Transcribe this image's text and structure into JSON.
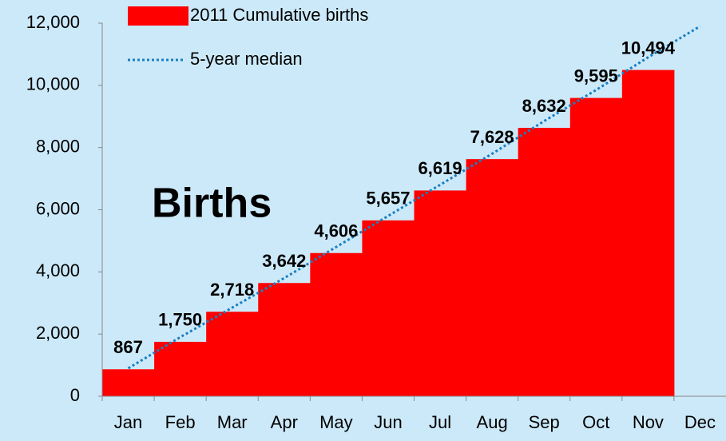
{
  "chart_data": {
    "type": "bar",
    "annotation": "Births",
    "categories": [
      "Jan",
      "Feb",
      "Mar",
      "Apr",
      "May",
      "Jun",
      "Jul",
      "Aug",
      "Sep",
      "Oct",
      "Nov",
      "Dec"
    ],
    "series": [
      {
        "name": "2011 Cumulative births",
        "type": "bar",
        "color": "#ff0000",
        "values": [
          867,
          1750,
          2718,
          3642,
          4606,
          5657,
          6619,
          7628,
          8632,
          9595,
          10494,
          null
        ],
        "value_labels": [
          "867",
          "1,750",
          "2,718",
          "3,642",
          "4,606",
          "5,657",
          "6,619",
          "7,628",
          "8,632",
          "9,595",
          "10,494",
          null
        ]
      },
      {
        "name": "5-year median",
        "type": "line",
        "color": "#1a7fc1",
        "dotted": true,
        "values": [
          900,
          1900,
          2850,
          3800,
          4800,
          5800,
          6800,
          7800,
          8850,
          9850,
          10900,
          11900
        ]
      }
    ],
    "ylim": [
      0,
      12000
    ],
    "yticks": [
      0,
      {
        "value": 2000,
        "label": "2,000"
      },
      {
        "value": 4000,
        "label": "4,000"
      },
      {
        "value": 6000,
        "label": "6,000"
      },
      {
        "value": 8000,
        "label": "8,000"
      },
      {
        "value": 10000,
        "label": "10,000"
      },
      {
        "value": 12000,
        "label": "12,000"
      }
    ],
    "grid": false
  }
}
